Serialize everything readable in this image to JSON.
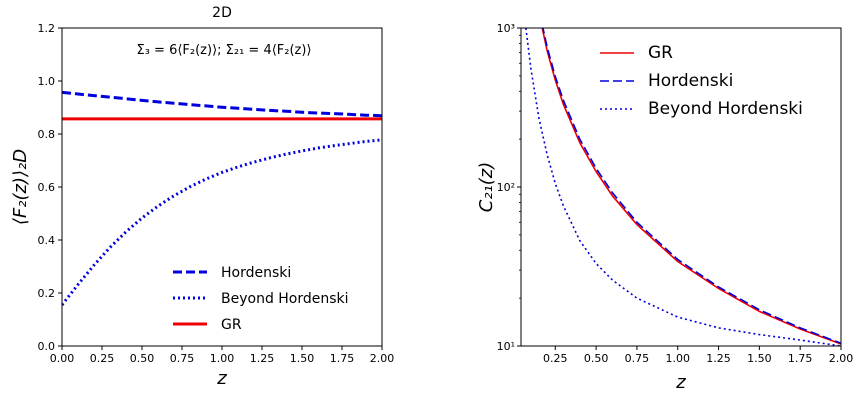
{
  "chart_data": [
    {
      "type": "line",
      "title": "2D",
      "annotation": "Σ₃ = 6⟨F₂(z)⟩;   Σ₂₁ = 4⟨F₂(z)⟩",
      "xlabel": "z",
      "ylabel": "⟨F₂(z)⟩₂D",
      "xlim": [
        0,
        2.0
      ],
      "ylim": [
        0,
        1.2
      ],
      "xticks": [
        "0.00",
        "0.25",
        "0.50",
        "0.75",
        "1.00",
        "1.25",
        "1.50",
        "1.75",
        "2.00"
      ],
      "yticks": [
        "0.0",
        "0.2",
        "0.4",
        "0.6",
        "0.8",
        "1.0",
        "1.2"
      ],
      "legend_placement": "lower-right",
      "series": [
        {
          "name": "Hordenski",
          "style": "dashed",
          "color": "#0000dd",
          "x": [
            0.0,
            0.1,
            0.2,
            0.3,
            0.4,
            0.5,
            0.6,
            0.7,
            0.8,
            0.9,
            1.0,
            1.1,
            1.2,
            1.3,
            1.4,
            1.5,
            1.6,
            1.7,
            1.8,
            1.9,
            2.0
          ],
          "y": [
            0.957,
            0.951,
            0.945,
            0.939,
            0.933,
            0.927,
            0.921,
            0.916,
            0.911,
            0.906,
            0.901,
            0.897,
            0.893,
            0.889,
            0.886,
            0.882,
            0.879,
            0.877,
            0.874,
            0.871,
            0.869
          ]
        },
        {
          "name": "Beyond Hordenski",
          "style": "dotted",
          "color": "#0000dd",
          "x": [
            0.0,
            0.1,
            0.2,
            0.3,
            0.4,
            0.5,
            0.6,
            0.7,
            0.8,
            0.9,
            1.0,
            1.1,
            1.2,
            1.3,
            1.4,
            1.5,
            1.6,
            1.7,
            1.8,
            1.9,
            2.0
          ],
          "y": [
            0.155,
            0.232,
            0.305,
            0.372,
            0.431,
            0.483,
            0.528,
            0.567,
            0.601,
            0.63,
            0.655,
            0.676,
            0.694,
            0.71,
            0.724,
            0.736,
            0.747,
            0.756,
            0.764,
            0.772,
            0.778
          ]
        },
        {
          "name": "GR",
          "style": "solid",
          "color": "#ee0000",
          "x": [
            0.0,
            2.0
          ],
          "y": [
            0.857,
            0.857
          ]
        }
      ]
    },
    {
      "type": "line",
      "xlabel": "z",
      "ylabel": "C₂₁(z)",
      "xlim": [
        0.04,
        2.0
      ],
      "ylim": [
        10,
        1000
      ],
      "yscale": "log",
      "xticks": [
        "0.25",
        "0.50",
        "0.75",
        "1.00",
        "1.25",
        "1.50",
        "1.75",
        "2.00"
      ],
      "yticks": [
        "10¹",
        "10²",
        "10³"
      ],
      "legend_placement": "top-right",
      "series": [
        {
          "name": "GR",
          "style": "solid",
          "color": "#ee0000",
          "x": [
            0.17,
            0.2,
            0.25,
            0.3,
            0.4,
            0.5,
            0.6,
            0.75,
            1.0,
            1.25,
            1.5,
            1.75,
            2.0
          ],
          "y": [
            1000,
            720,
            470,
            330,
            190,
            125,
            88,
            58,
            34,
            23,
            16.5,
            12.8,
            10.3
          ]
        },
        {
          "name": "Hordenski",
          "style": "dashed",
          "color": "#0000dd",
          "x": [
            0.17,
            0.2,
            0.25,
            0.3,
            0.4,
            0.5,
            0.6,
            0.75,
            1.0,
            1.25,
            1.5,
            1.75,
            2.0
          ],
          "y": [
            1050,
            760,
            495,
            350,
            200,
            131,
            92,
            60,
            35,
            23.5,
            16.9,
            13.0,
            10.4
          ]
        },
        {
          "name": "Beyond Hordenski",
          "style": "dotted",
          "color": "#0000dd",
          "x": [
            0.07,
            0.1,
            0.15,
            0.2,
            0.25,
            0.3,
            0.4,
            0.5,
            0.6,
            0.75,
            1.0,
            1.25,
            1.5,
            1.75,
            2.0
          ],
          "y": [
            1000,
            560,
            270,
            160,
            105,
            76,
            46,
            33,
            26,
            20,
            15.2,
            13.0,
            11.8,
            10.9,
            10.0
          ]
        }
      ]
    }
  ]
}
